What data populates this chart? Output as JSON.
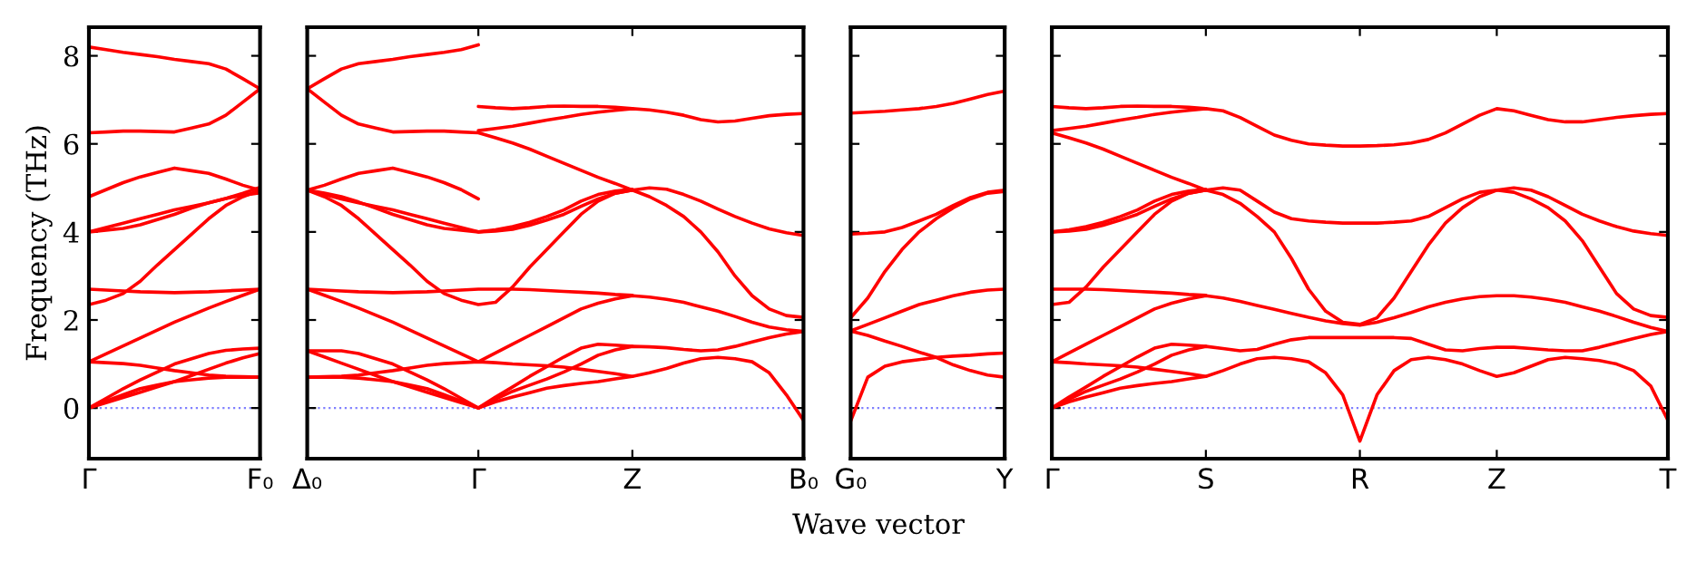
{
  "chart_data": [
    {
      "type": "line",
      "ylabel": "Frequency (THz)",
      "categories": [
        "Γ",
        null,
        null,
        null,
        null,
        null,
        null,
        null,
        null,
        null,
        "F₀"
      ],
      "ylim": [
        -1.15,
        8.65
      ],
      "yticks": [
        0,
        2,
        4,
        6,
        8
      ],
      "ref_lines": [
        {
          "axis": "y",
          "value": 0,
          "color": "#8080ff",
          "line_style": "dotted"
        }
      ],
      "series": [
        {
          "color": "#ff0000",
          "values": [
            0,
            0.16,
            0.3,
            0.44,
            0.52,
            0.6,
            0.64,
            0.68,
            0.7,
            0.7,
            0.7
          ]
        },
        {
          "color": "#ff0000",
          "values": [
            0,
            0.12,
            0.24,
            0.36,
            0.48,
            0.6,
            0.74,
            0.88,
            1.02,
            1.14,
            1.24
          ]
        },
        {
          "color": "#ff0000",
          "values": [
            0,
            0.22,
            0.44,
            0.64,
            0.82,
            1.0,
            1.12,
            1.24,
            1.31,
            1.34,
            1.36
          ]
        },
        {
          "color": "#ff0000",
          "values": [
            1.05,
            1.03,
            1.01,
            0.97,
            0.91,
            0.85,
            0.8,
            0.75,
            0.72,
            0.71,
            0.7
          ]
        },
        {
          "color": "#ff0000",
          "values": [
            1.05,
            1.23,
            1.41,
            1.59,
            1.77,
            1.95,
            2.11,
            2.27,
            2.42,
            2.56,
            2.7
          ]
        },
        {
          "color": "#ff0000",
          "values": [
            2.35,
            2.45,
            2.6,
            2.88,
            3.25,
            3.6,
            3.95,
            4.3,
            4.6,
            4.8,
            4.95
          ]
        },
        {
          "color": "#ff0000",
          "values": [
            2.7,
            2.68,
            2.66,
            2.64,
            2.63,
            2.62,
            2.63,
            2.64,
            2.66,
            2.68,
            2.7
          ]
        },
        {
          "color": "#ff0000",
          "values": [
            4.0,
            4.04,
            4.08,
            4.16,
            4.28,
            4.4,
            4.54,
            4.66,
            4.76,
            4.83,
            4.89
          ]
        },
        {
          "color": "#ff0000",
          "values": [
            4.0,
            4.1,
            4.2,
            4.3,
            4.4,
            4.5,
            4.58,
            4.66,
            4.76,
            4.88,
            5.01
          ]
        },
        {
          "color": "#ff0000",
          "values": [
            4.8,
            4.96,
            5.12,
            5.25,
            5.35,
            5.45,
            5.39,
            5.33,
            5.2,
            5.06,
            4.95
          ]
        },
        {
          "color": "#ff0000",
          "values": [
            6.25,
            6.27,
            6.29,
            6.29,
            6.28,
            6.27,
            6.36,
            6.45,
            6.65,
            6.95,
            7.25
          ]
        },
        {
          "color": "#ff0000",
          "values": [
            8.2,
            8.14,
            8.08,
            8.03,
            7.98,
            7.92,
            7.87,
            7.82,
            7.7,
            7.48,
            7.25
          ]
        }
      ]
    },
    {
      "type": "line",
      "tick_labels": "x",
      "categories": [
        "Δ₀",
        null,
        null,
        null,
        null,
        null,
        null,
        null,
        null,
        null,
        "Γ",
        null,
        null,
        null,
        null,
        null,
        null,
        null,
        null,
        "Z",
        null,
        null,
        null,
        null,
        null,
        null,
        null,
        null,
        null,
        "B₀"
      ],
      "ylim": [
        -1.15,
        8.65
      ],
      "yticks": [
        0,
        2,
        4,
        6,
        8
      ],
      "ref_lines": [
        {
          "axis": "y",
          "value": 0,
          "color": "#8080ff",
          "line_style": "dotted"
        }
      ],
      "series": [
        {
          "color": "#ff0000",
          "values": [
            0.7,
            0.7,
            0.7,
            0.68,
            0.64,
            0.6,
            0.52,
            0.44,
            0.3,
            0.16,
            0,
            0.14,
            0.25,
            0.35,
            0.45,
            0.51,
            0.56,
            0.6,
            0.66,
            0.72,
            0.8,
            0.9,
            1.02,
            1.12,
            1.15,
            1.12,
            1.05,
            0.8,
            0.3,
            -0.28
          ]
        },
        {
          "color": "#ff0000",
          "values": [
            1.3,
            1.16,
            1.02,
            0.88,
            0.74,
            0.6,
            0.48,
            0.36,
            0.24,
            0.12,
            0,
            0.2,
            0.38,
            0.52,
            0.66,
            0.82,
            1.0,
            1.2,
            1.32,
            1.4,
            1.39,
            1.37,
            1.33,
            1.3,
            1.32,
            1.4,
            1.5,
            1.6,
            1.68,
            1.74
          ]
        },
        {
          "color": "#ff0000",
          "values": [
            1.3,
            1.3,
            1.3,
            1.24,
            1.12,
            1.0,
            0.82,
            0.64,
            0.44,
            0.22,
            0,
            0.25,
            0.48,
            0.72,
            0.94,
            1.16,
            1.36,
            1.45,
            1.43,
            1.4,
            null,
            null,
            null,
            null,
            null,
            null,
            null,
            null,
            null,
            null
          ]
        },
        {
          "color": "#ff0000",
          "values": [
            0.7,
            0.71,
            0.72,
            0.75,
            0.8,
            0.85,
            0.91,
            0.97,
            1.01,
            1.03,
            1.05,
            1.03,
            1.0,
            0.98,
            0.96,
            0.93,
            0.88,
            0.83,
            0.78,
            0.72,
            null,
            null,
            null,
            null,
            null,
            null,
            null,
            null,
            null,
            null
          ]
        },
        {
          "color": "#ff0000",
          "values": [
            2.7,
            2.56,
            2.42,
            2.27,
            2.11,
            1.95,
            1.77,
            1.59,
            1.41,
            1.23,
            1.05,
            1.25,
            1.45,
            1.65,
            1.85,
            2.05,
            2.25,
            2.38,
            2.48,
            2.55,
            2.52,
            2.47,
            2.4,
            2.3,
            2.2,
            2.08,
            1.95,
            1.84,
            1.78,
            1.74
          ]
        },
        {
          "color": "#ff0000",
          "values": [
            4.95,
            4.8,
            4.6,
            4.3,
            3.95,
            3.6,
            3.25,
            2.88,
            2.6,
            2.45,
            2.35,
            2.4,
            2.75,
            3.2,
            3.6,
            4.0,
            4.4,
            4.7,
            4.88,
            4.95,
            4.8,
            4.6,
            4.35,
            4.0,
            3.55,
            3.0,
            2.55,
            2.25,
            2.1,
            2.06
          ]
        },
        {
          "color": "#ff0000",
          "values": [
            2.7,
            2.68,
            2.66,
            2.64,
            2.63,
            2.62,
            2.63,
            2.64,
            2.66,
            2.68,
            2.7,
            2.7,
            2.7,
            2.69,
            2.67,
            2.65,
            2.63,
            2.61,
            2.58,
            2.56,
            null,
            null,
            null,
            null,
            null,
            null,
            null,
            null,
            null,
            null
          ]
        },
        {
          "color": "#ff0000",
          "values": [
            4.95,
            4.88,
            4.8,
            4.68,
            4.54,
            4.4,
            4.28,
            4.16,
            4.08,
            4.04,
            4.0,
            4.02,
            4.06,
            4.15,
            4.27,
            4.4,
            4.58,
            4.75,
            4.88,
            4.95,
            5.0,
            4.97,
            4.85,
            4.7,
            4.52,
            4.35,
            4.2,
            4.07,
            3.98,
            3.92
          ]
        },
        {
          "color": "#ff0000",
          "values": [
            4.95,
            4.85,
            4.75,
            4.66,
            4.58,
            4.5,
            4.4,
            4.3,
            4.2,
            4.1,
            4.0,
            4.05,
            4.12,
            4.22,
            4.35,
            4.5,
            4.7,
            4.85,
            4.93,
            4.97,
            null,
            null,
            null,
            null,
            null,
            null,
            null,
            null,
            null,
            null
          ]
        },
        {
          "color": "#ff0000",
          "values": [
            4.95,
            5.06,
            5.2,
            5.33,
            5.39,
            5.45,
            5.35,
            5.25,
            5.12,
            4.96,
            4.75,
            null,
            null,
            null,
            null,
            null,
            null,
            null,
            null,
            null,
            null,
            null,
            null,
            null,
            null,
            null,
            null,
            null,
            null,
            null
          ]
        },
        {
          "color": "#ff0000",
          "values": [
            7.25,
            6.95,
            6.65,
            6.45,
            6.36,
            6.27,
            6.28,
            6.29,
            6.29,
            6.27,
            6.25,
            6.14,
            6.02,
            5.88,
            5.72,
            5.56,
            5.4,
            5.24,
            5.1,
            4.95,
            null,
            null,
            null,
            null,
            null,
            null,
            null,
            null,
            null,
            null
          ]
        },
        {
          "color": "#ff0000",
          "values": [
            7.25,
            7.48,
            7.7,
            7.82,
            7.87,
            7.92,
            7.98,
            8.03,
            8.08,
            8.14,
            8.25,
            null,
            null,
            null,
            null,
            null,
            null,
            null,
            null,
            null,
            null,
            null,
            null,
            null,
            null,
            null,
            null,
            null,
            null,
            null
          ]
        },
        {
          "color": "#ff0000",
          "values": [
            null,
            null,
            null,
            null,
            null,
            null,
            null,
            null,
            null,
            null,
            6.3,
            6.35,
            6.4,
            6.47,
            6.54,
            6.6,
            6.67,
            6.72,
            6.76,
            6.8,
            6.77,
            6.72,
            6.65,
            6.55,
            6.5,
            6.52,
            6.58,
            6.64,
            6.67,
            6.69
          ]
        },
        {
          "color": "#ff0000",
          "values": [
            null,
            null,
            null,
            null,
            null,
            null,
            null,
            null,
            null,
            null,
            6.85,
            6.82,
            6.8,
            6.82,
            6.85,
            6.86,
            6.85,
            6.85,
            6.83,
            6.8,
            null,
            null,
            null,
            null,
            null,
            null,
            null,
            null,
            null,
            null
          ]
        }
      ]
    },
    {
      "type": "line",
      "tick_labels": "x",
      "xlabel": "Wave vector",
      "categories": [
        "G₀",
        null,
        null,
        null,
        null,
        null,
        null,
        null,
        null,
        "Y"
      ],
      "ylim": [
        -1.15,
        8.65
      ],
      "yticks": [
        0,
        2,
        4,
        6,
        8
      ],
      "ref_lines": [
        {
          "axis": "y",
          "value": 0,
          "color": "#8080ff",
          "line_style": "dotted"
        }
      ],
      "series": [
        {
          "color": "#ff0000",
          "values": [
            6.7,
            6.72,
            6.74,
            6.77,
            6.8,
            6.85,
            6.92,
            7.02,
            7.12,
            7.2
          ]
        },
        {
          "color": "#ff0000",
          "values": [
            3.95,
            3.97,
            4.0,
            4.1,
            4.25,
            4.4,
            4.6,
            4.78,
            4.9,
            4.95
          ]
        },
        {
          "color": "#ff0000",
          "values": [
            2.05,
            2.5,
            3.1,
            3.6,
            4.0,
            4.3,
            4.55,
            4.75,
            4.88,
            4.92
          ]
        },
        {
          "color": "#ff0000",
          "values": [
            1.75,
            1.9,
            2.05,
            2.2,
            2.35,
            2.45,
            2.55,
            2.63,
            2.68,
            2.7
          ]
        },
        {
          "color": "#ff0000",
          "values": [
            1.75,
            1.65,
            1.52,
            1.4,
            1.27,
            1.15,
            0.98,
            0.85,
            0.75,
            0.7
          ]
        },
        {
          "color": "#ff0000",
          "values": [
            -0.3,
            0.7,
            0.95,
            1.05,
            1.1,
            1.15,
            1.18,
            1.2,
            1.23,
            1.25
          ]
        }
      ]
    },
    {
      "type": "line",
      "tick_labels": "x",
      "categories": [
        "Γ",
        null,
        null,
        null,
        null,
        null,
        null,
        null,
        null,
        "S",
        null,
        null,
        null,
        null,
        null,
        null,
        null,
        null,
        "R",
        null,
        null,
        null,
        null,
        null,
        null,
        null,
        "Z",
        null,
        null,
        null,
        null,
        null,
        null,
        null,
        null,
        null,
        "T"
      ],
      "ylim": [
        -1.15,
        8.65
      ],
      "yticks": [
        0,
        2,
        4,
        6,
        8
      ],
      "ref_lines": [
        {
          "axis": "y",
          "value": 0,
          "color": "#8080ff",
          "line_style": "dotted"
        }
      ],
      "series": [
        {
          "color": "#ff0000",
          "values": [
            0,
            0.14,
            0.25,
            0.35,
            0.45,
            0.51,
            0.56,
            0.6,
            0.66,
            0.72,
            0.85,
            1.0,
            1.12,
            1.15,
            1.12,
            1.05,
            0.8,
            0.3,
            -0.75,
            0.3,
            0.85,
            1.1,
            1.15,
            1.1,
            1.0,
            0.85,
            0.72,
            0.8,
            0.95,
            1.1,
            1.15,
            1.12,
            1.08,
            1.0,
            0.85,
            0.5,
            -0.28
          ]
        },
        {
          "color": "#ff0000",
          "values": [
            0,
            0.2,
            0.38,
            0.52,
            0.66,
            0.82,
            1.0,
            1.2,
            1.32,
            1.4,
            1.35,
            1.3,
            1.33,
            1.45,
            1.55,
            1.6,
            1.6,
            1.6,
            1.6,
            1.6,
            1.6,
            1.58,
            1.45,
            1.32,
            1.3,
            1.35,
            1.38,
            1.38,
            1.35,
            1.32,
            1.3,
            1.3,
            1.38,
            1.48,
            1.58,
            1.67,
            1.74
          ]
        },
        {
          "color": "#ff0000",
          "values": [
            0,
            0.25,
            0.48,
            0.72,
            0.94,
            1.16,
            1.36,
            1.45,
            1.43,
            1.4,
            null,
            null,
            null,
            null,
            null,
            null,
            null,
            null,
            null,
            null,
            null,
            null,
            null,
            null,
            null,
            null,
            null,
            null,
            null,
            null,
            null,
            null,
            null,
            null,
            null,
            null,
            null
          ]
        },
        {
          "color": "#ff0000",
          "values": [
            1.05,
            1.03,
            1.0,
            0.98,
            0.96,
            0.93,
            0.88,
            0.83,
            0.78,
            0.72,
            null,
            null,
            null,
            null,
            null,
            null,
            null,
            null,
            null,
            null,
            null,
            null,
            null,
            null,
            null,
            null,
            null,
            null,
            null,
            null,
            null,
            null,
            null,
            null,
            null,
            null,
            null
          ]
        },
        {
          "color": "#ff0000",
          "values": [
            1.05,
            1.25,
            1.45,
            1.65,
            1.85,
            2.05,
            2.25,
            2.38,
            2.48,
            2.55,
            2.5,
            2.42,
            2.33,
            2.24,
            2.15,
            2.06,
            1.98,
            1.92,
            1.88,
            1.95,
            2.05,
            2.17,
            2.3,
            2.4,
            2.48,
            2.53,
            2.55,
            2.55,
            2.52,
            2.47,
            2.4,
            2.3,
            2.2,
            2.08,
            1.95,
            1.83,
            1.74
          ]
        },
        {
          "color": "#ff0000",
          "values": [
            2.35,
            2.4,
            2.75,
            3.2,
            3.6,
            4.0,
            4.4,
            4.7,
            4.88,
            4.95,
            4.85,
            4.65,
            4.35,
            4.0,
            3.4,
            2.7,
            2.2,
            1.95,
            1.9,
            2.05,
            2.5,
            3.1,
            3.7,
            4.2,
            4.55,
            4.8,
            4.95,
            4.9,
            4.75,
            4.55,
            4.25,
            3.8,
            3.2,
            2.6,
            2.25,
            2.1,
            2.06
          ]
        },
        {
          "color": "#ff0000",
          "values": [
            2.7,
            2.7,
            2.7,
            2.69,
            2.67,
            2.65,
            2.63,
            2.61,
            2.58,
            2.56,
            null,
            null,
            null,
            null,
            null,
            null,
            null,
            null,
            null,
            null,
            null,
            null,
            null,
            null,
            null,
            null,
            null,
            null,
            null,
            null,
            null,
            null,
            null,
            null,
            null,
            null,
            null
          ]
        },
        {
          "color": "#ff0000",
          "values": [
            4.0,
            4.02,
            4.06,
            4.15,
            4.27,
            4.4,
            4.58,
            4.75,
            4.88,
            4.95,
            5.0,
            4.95,
            4.7,
            4.45,
            4.3,
            4.25,
            4.22,
            4.2,
            4.2,
            4.2,
            4.22,
            4.25,
            4.35,
            4.55,
            4.75,
            4.9,
            4.95,
            5.0,
            4.95,
            4.8,
            4.6,
            4.4,
            4.25,
            4.12,
            4.02,
            3.96,
            3.92
          ]
        },
        {
          "color": "#ff0000",
          "values": [
            4.0,
            4.05,
            4.12,
            4.22,
            4.35,
            4.5,
            4.7,
            4.85,
            4.93,
            4.97,
            null,
            null,
            null,
            null,
            null,
            null,
            null,
            null,
            null,
            null,
            null,
            null,
            null,
            null,
            null,
            null,
            null,
            null,
            null,
            null,
            null,
            null,
            null,
            null,
            null,
            null,
            null
          ]
        },
        {
          "color": "#ff0000",
          "values": [
            6.25,
            6.14,
            6.02,
            5.88,
            5.72,
            5.56,
            5.4,
            5.24,
            5.1,
            4.95,
            null,
            null,
            null,
            null,
            null,
            null,
            null,
            null,
            null,
            null,
            null,
            null,
            null,
            null,
            null,
            null,
            null,
            null,
            null,
            null,
            null,
            null,
            null,
            null,
            null,
            null,
            null
          ]
        },
        {
          "color": "#ff0000",
          "values": [
            6.3,
            6.35,
            6.4,
            6.47,
            6.54,
            6.6,
            6.67,
            6.72,
            6.76,
            6.8,
            6.75,
            6.6,
            6.4,
            6.2,
            6.08,
            6.0,
            5.97,
            5.95,
            5.95,
            5.96,
            5.98,
            6.02,
            6.1,
            6.25,
            6.45,
            6.65,
            6.8,
            6.75,
            6.65,
            6.55,
            6.5,
            6.5,
            6.55,
            6.6,
            6.64,
            6.67,
            6.69
          ]
        },
        {
          "color": "#ff0000",
          "values": [
            6.85,
            6.82,
            6.8,
            6.82,
            6.85,
            6.86,
            6.85,
            6.85,
            6.83,
            6.8,
            null,
            null,
            null,
            null,
            null,
            null,
            null,
            null,
            null,
            null,
            null,
            null,
            null,
            null,
            null,
            null,
            null,
            null,
            null,
            null,
            null,
            null,
            null,
            null,
            null,
            null,
            null
          ]
        }
      ]
    }
  ]
}
